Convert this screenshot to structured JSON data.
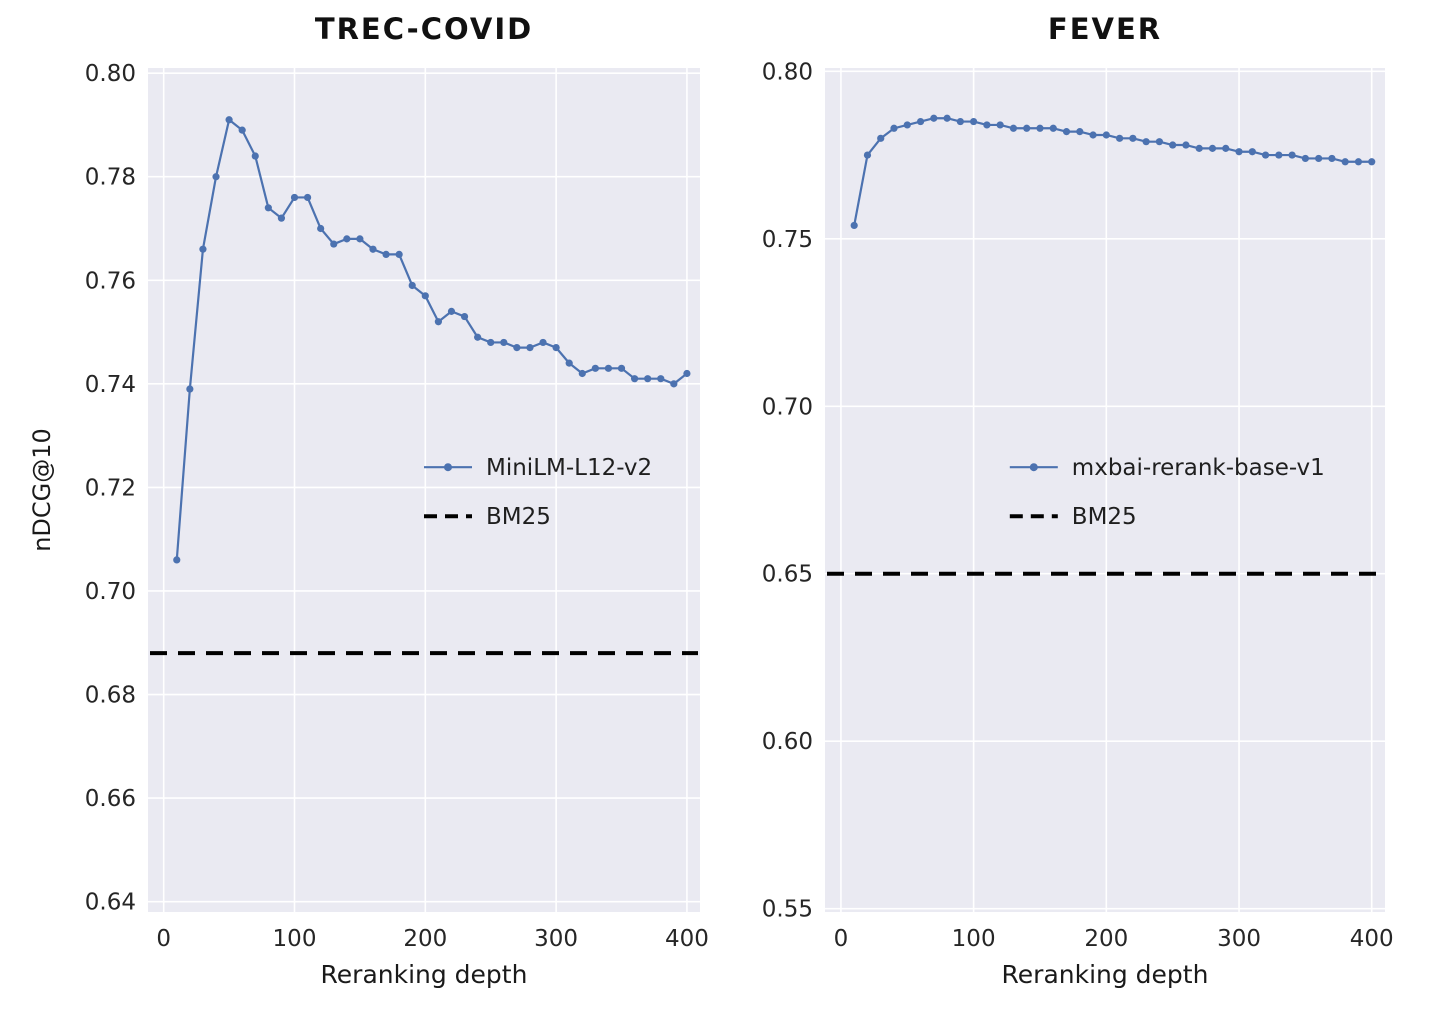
{
  "style": {
    "axes_bg": "#eaeaf2",
    "grid_color": "#ffffff",
    "line_color": "#4c72b0",
    "baseline_color": "#000000",
    "tick_color": "#262626"
  },
  "chart_data": [
    {
      "type": "line",
      "title": "TREC-COVID",
      "xlabel": "Reranking depth",
      "ylabel": "nDCG@10",
      "xlim": [
        -12,
        410
      ],
      "ylim": [
        0.638,
        0.801
      ],
      "xticks": [
        0,
        100,
        200,
        300,
        400
      ],
      "yticks": [
        0.64,
        0.66,
        0.68,
        0.7,
        0.72,
        0.74,
        0.76,
        0.78,
        0.8
      ],
      "grid": true,
      "legend_loc": "center right",
      "x": [
        10,
        20,
        30,
        40,
        50,
        60,
        70,
        80,
        90,
        100,
        110,
        120,
        130,
        140,
        150,
        160,
        170,
        180,
        190,
        200,
        210,
        220,
        230,
        240,
        250,
        260,
        270,
        280,
        290,
        300,
        310,
        320,
        330,
        340,
        350,
        360,
        370,
        380,
        390,
        400
      ],
      "series": [
        {
          "name": "MiniLM-L12-v2",
          "style": "line-marker",
          "color": "#4c72b0",
          "values": [
            0.706,
            0.739,
            0.766,
            0.78,
            0.791,
            0.789,
            0.784,
            0.774,
            0.772,
            0.776,
            0.776,
            0.77,
            0.767,
            0.768,
            0.768,
            0.766,
            0.765,
            0.765,
            0.759,
            0.757,
            0.752,
            0.754,
            0.753,
            0.749,
            0.748,
            0.748,
            0.747,
            0.747,
            0.748,
            0.747,
            0.744,
            0.742,
            0.743,
            0.743,
            0.743,
            0.741,
            0.741,
            0.741,
            0.74,
            0.742
          ]
        },
        {
          "name": "BM25",
          "style": "dashed-hline",
          "color": "#000000",
          "value": 0.688
        }
      ]
    },
    {
      "type": "line",
      "title": "FEVER",
      "xlabel": "Reranking depth",
      "ylabel": "",
      "xlim": [
        -12,
        410
      ],
      "ylim": [
        0.549,
        0.801
      ],
      "xticks": [
        0,
        100,
        200,
        300,
        400
      ],
      "yticks": [
        0.55,
        0.6,
        0.65,
        0.7,
        0.75,
        0.8
      ],
      "grid": true,
      "legend_loc": "center right",
      "x": [
        10,
        20,
        30,
        40,
        50,
        60,
        70,
        80,
        90,
        100,
        110,
        120,
        130,
        140,
        150,
        160,
        170,
        180,
        190,
        200,
        210,
        220,
        230,
        240,
        250,
        260,
        270,
        280,
        290,
        300,
        310,
        320,
        330,
        340,
        350,
        360,
        370,
        380,
        390,
        400
      ],
      "series": [
        {
          "name": "mxbai-rerank-base-v1",
          "style": "line-marker",
          "color": "#4c72b0",
          "values": [
            0.754,
            0.775,
            0.78,
            0.783,
            0.784,
            0.785,
            0.786,
            0.786,
            0.785,
            0.785,
            0.784,
            0.784,
            0.783,
            0.783,
            0.783,
            0.783,
            0.782,
            0.782,
            0.781,
            0.781,
            0.78,
            0.78,
            0.779,
            0.779,
            0.778,
            0.778,
            0.777,
            0.777,
            0.777,
            0.776,
            0.776,
            0.775,
            0.775,
            0.775,
            0.774,
            0.774,
            0.774,
            0.773,
            0.773,
            0.773
          ]
        },
        {
          "name": "BM25",
          "style": "dashed-hline",
          "color": "#000000",
          "value": 0.65
        }
      ]
    }
  ]
}
